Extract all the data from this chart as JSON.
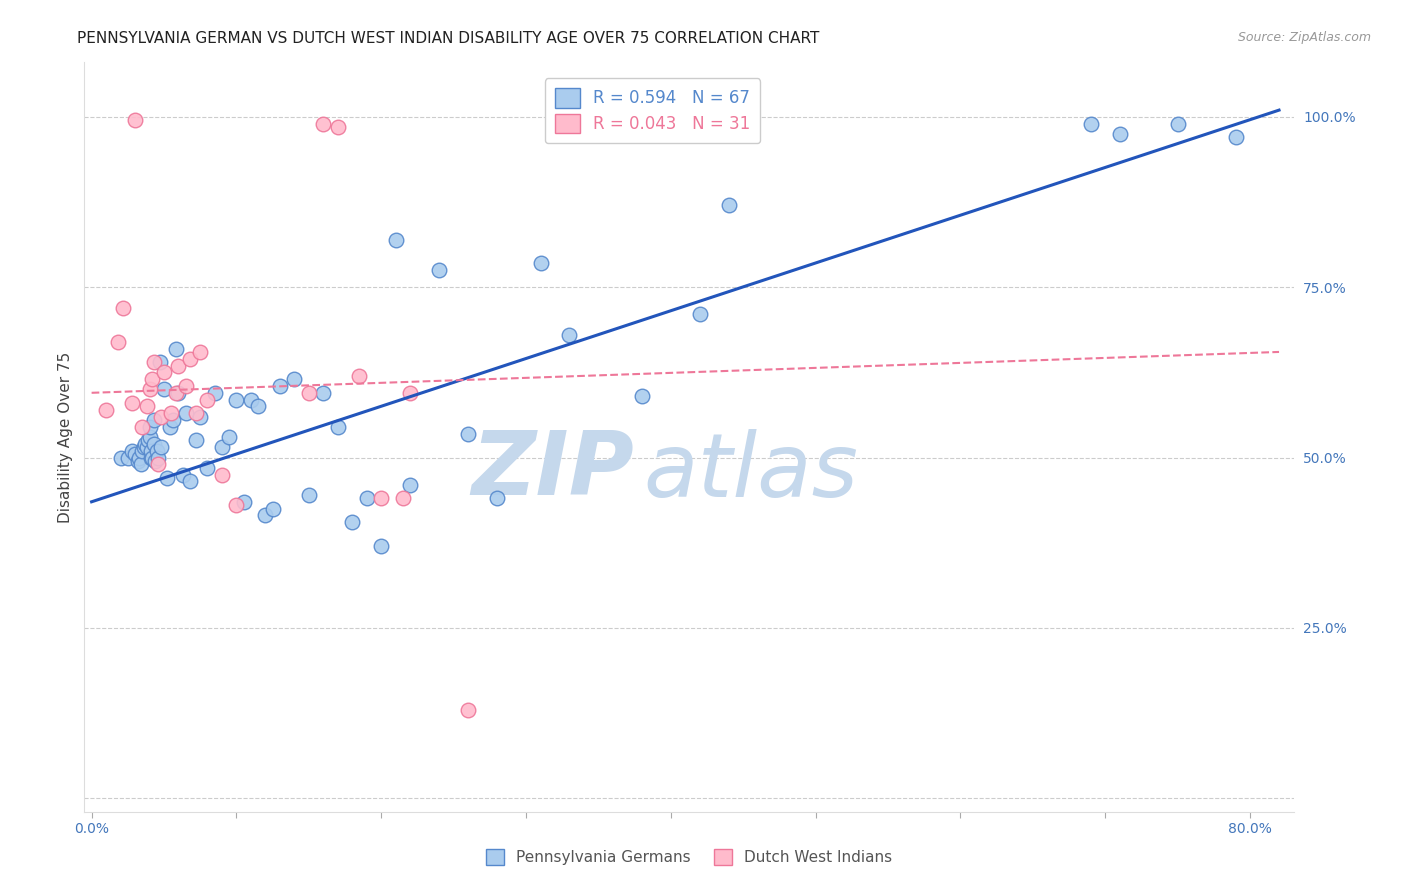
{
  "title": "PENNSYLVANIA GERMAN VS DUTCH WEST INDIAN DISABILITY AGE OVER 75 CORRELATION CHART",
  "source": "Source: ZipAtlas.com",
  "ylabel": "Disability Age Over 75",
  "x_tick_positions": [
    0.0,
    0.1,
    0.2,
    0.3,
    0.4,
    0.5,
    0.6,
    0.7,
    0.8
  ],
  "x_tick_labels": [
    "0.0%",
    "",
    "",
    "",
    "",
    "",
    "",
    "",
    "80.0%"
  ],
  "y_tick_positions": [
    0.0,
    0.25,
    0.5,
    0.75,
    1.0
  ],
  "y_tick_labels": [
    "",
    "25.0%",
    "50.0%",
    "75.0%",
    "100.0%"
  ],
  "xlim": [
    -0.005,
    0.83
  ],
  "ylim": [
    -0.02,
    1.08
  ],
  "legend_entry1": "R = 0.594   N = 67",
  "legend_entry2": "R = 0.043   N = 31",
  "legend_color1": "#5588CC",
  "legend_color2": "#EE7799",
  "trendline1_color": "#2255BB",
  "trendline2_color": "#EE7799",
  "scatter1_facecolor": "#AACCEE",
  "scatter1_edgecolor": "#5588CC",
  "scatter2_facecolor": "#FFBBCC",
  "scatter2_edgecolor": "#EE7799",
  "grid_color": "#CCCCCC",
  "watermark_zip": "ZIP",
  "watermark_atlas": "atlas",
  "watermark_color": "#C5D8EC",
  "background_color": "#FFFFFF",
  "title_fontsize": 11,
  "axis_label_fontsize": 11,
  "tick_fontsize": 10,
  "tick_color": "#4477BB",
  "scatter1_x": [
    0.02,
    0.025,
    0.028,
    0.03,
    0.032,
    0.033,
    0.034,
    0.035,
    0.036,
    0.037,
    0.038,
    0.039,
    0.04,
    0.04,
    0.041,
    0.041,
    0.042,
    0.043,
    0.043,
    0.044,
    0.045,
    0.046,
    0.047,
    0.048,
    0.05,
    0.052,
    0.054,
    0.056,
    0.058,
    0.06,
    0.063,
    0.065,
    0.068,
    0.072,
    0.075,
    0.08,
    0.085,
    0.09,
    0.095,
    0.1,
    0.105,
    0.11,
    0.115,
    0.12,
    0.125,
    0.13,
    0.14,
    0.15,
    0.16,
    0.17,
    0.18,
    0.19,
    0.2,
    0.21,
    0.22,
    0.24,
    0.26,
    0.28,
    0.31,
    0.33,
    0.38,
    0.42,
    0.44,
    0.69,
    0.71,
    0.75,
    0.79
  ],
  "scatter1_y": [
    0.5,
    0.5,
    0.51,
    0.505,
    0.495,
    0.5,
    0.49,
    0.51,
    0.515,
    0.52,
    0.515,
    0.525,
    0.53,
    0.545,
    0.5,
    0.51,
    0.5,
    0.52,
    0.555,
    0.495,
    0.51,
    0.5,
    0.64,
    0.515,
    0.6,
    0.47,
    0.545,
    0.555,
    0.66,
    0.595,
    0.475,
    0.565,
    0.465,
    0.525,
    0.56,
    0.485,
    0.595,
    0.515,
    0.53,
    0.585,
    0.435,
    0.585,
    0.575,
    0.415,
    0.425,
    0.605,
    0.615,
    0.445,
    0.595,
    0.545,
    0.405,
    0.44,
    0.37,
    0.82,
    0.46,
    0.775,
    0.535,
    0.44,
    0.785,
    0.68,
    0.59,
    0.71,
    0.87,
    0.99,
    0.975,
    0.99,
    0.97
  ],
  "scatter2_x": [
    0.01,
    0.018,
    0.022,
    0.028,
    0.03,
    0.035,
    0.038,
    0.04,
    0.042,
    0.043,
    0.046,
    0.048,
    0.05,
    0.055,
    0.058,
    0.06,
    0.065,
    0.068,
    0.072,
    0.075,
    0.08,
    0.09,
    0.1,
    0.15,
    0.16,
    0.17,
    0.185,
    0.2,
    0.215,
    0.22,
    0.26
  ],
  "scatter2_y": [
    0.57,
    0.67,
    0.72,
    0.58,
    0.995,
    0.545,
    0.575,
    0.6,
    0.615,
    0.64,
    0.49,
    0.56,
    0.625,
    0.565,
    0.595,
    0.635,
    0.605,
    0.645,
    0.565,
    0.655,
    0.585,
    0.475,
    0.43,
    0.595,
    0.99,
    0.985,
    0.62,
    0.44,
    0.44,
    0.595,
    0.13
  ],
  "trendline1_x": [
    0.0,
    0.82
  ],
  "trendline1_y": [
    0.435,
    1.01
  ],
  "trendline2_x": [
    0.0,
    0.82
  ],
  "trendline2_y": [
    0.595,
    0.655
  ]
}
